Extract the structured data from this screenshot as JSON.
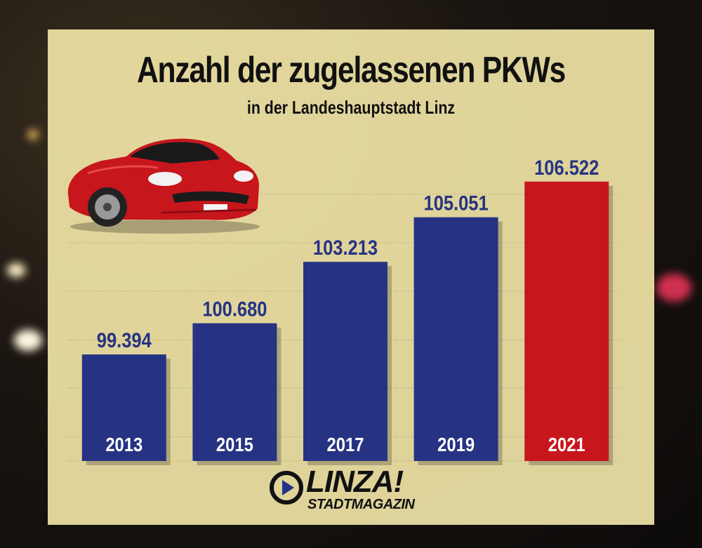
{
  "chart_data": {
    "type": "bar",
    "title": "Anzahl der zugelassenen PKWs",
    "subtitle": "in der Landeshauptstadt Linz",
    "categories": [
      "2013",
      "2015",
      "2017",
      "2019",
      "2021"
    ],
    "value_labels": [
      "99.394",
      "100.680",
      "103.213",
      "105.051",
      "106.522"
    ],
    "values": [
      99394,
      100680,
      103213,
      105051,
      106522
    ],
    "highlight_index": 4,
    "ylim": [
      95000,
      107500
    ],
    "colors": {
      "bar": "#263383",
      "highlight": "#c8161d",
      "label": "#263383",
      "category_text": "#ffffff"
    },
    "grid": true
  },
  "logo": {
    "name": "LINZA!",
    "tagline": "STADTMAGAZIN"
  },
  "icons": [
    "car-illustration-icon",
    "play-badge-icon"
  ]
}
